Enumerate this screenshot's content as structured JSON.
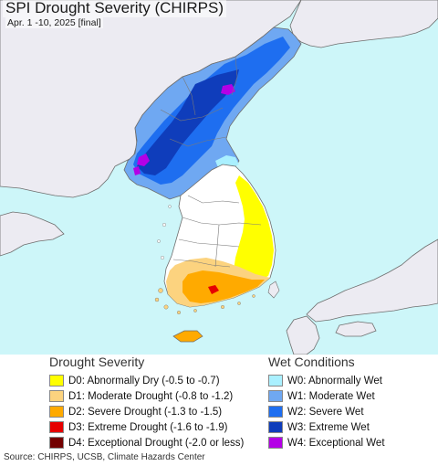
{
  "title": "SPI Drought Severity (CHIRPS)",
  "subtitle": "Apr. 1 -10, 2025 [final]",
  "colors": {
    "ocean": "#cdf6f9",
    "land": "#ecebf2",
    "border": "#6e6e6e"
  },
  "legend": {
    "drought": {
      "title": "Drought Severity",
      "items": [
        {
          "label": "D0: Abnormally Dry (-0.5 to -0.7)",
          "color": "#ffff00"
        },
        {
          "label": "D1: Moderate Drought (-0.8 to -1.2)",
          "color": "#fcd37f"
        },
        {
          "label": "D2: Severe Drought (-1.3 to -1.5)",
          "color": "#ffaa00"
        },
        {
          "label": "D3: Extreme Drought (-1.6 to -1.9)",
          "color": "#e60000"
        },
        {
          "label": "D4: Exceptional Drought (-2.0 or less)",
          "color": "#730000"
        }
      ]
    },
    "wet": {
      "title": "Wet Conditions",
      "items": [
        {
          "label": "W0: Abnormally Wet",
          "color": "#aaf0ff"
        },
        {
          "label": "W1: Moderate Wet",
          "color": "#6fa8f2"
        },
        {
          "label": "W2: Severe Wet",
          "color": "#1e6ef0"
        },
        {
          "label": "W3: Extreme Wet",
          "color": "#0f3dbb"
        },
        {
          "label": "W4: Exceptional Wet",
          "color": "#b400e6"
        }
      ]
    }
  },
  "source": "Source: CHIRPS, UCSB, Climate Hazards Center"
}
